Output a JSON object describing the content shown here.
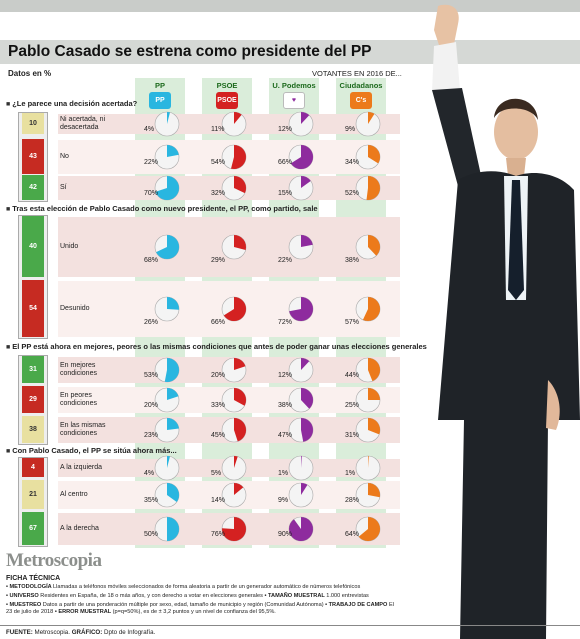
{
  "header": {
    "title": "Pablo Casado se estrena como presidente del PP",
    "subtitle": "Datos en %",
    "voters_label": "VOTANTES EN 2016 DE..."
  },
  "parties": [
    {
      "name": "PP",
      "logo_text": "PP",
      "color": "#29b6e0"
    },
    {
      "name": "PSOE",
      "logo_text": "PSOE",
      "color": "#d42121"
    },
    {
      "name": "U. Podemos",
      "logo_text": "♥",
      "color": "#8e2b9e"
    },
    {
      "name": "Ciudadanos",
      "logo_text": "C's",
      "color": "#ec7a1b"
    }
  ],
  "chart_data": [
    {
      "type": "pie",
      "question": "¿Le parece una decisión acertada?",
      "rows": [
        {
          "label": "Ni acertada, ni desacertada",
          "total": 10,
          "bar_color": "#e8e0a0",
          "values": [
            4,
            11,
            12,
            9
          ]
        },
        {
          "label": "No",
          "total": 43,
          "bar_color": "#c62b22",
          "values": [
            22,
            54,
            66,
            34
          ]
        },
        {
          "label": "Sí",
          "total": 42,
          "bar_color": "#4aa94a",
          "values": [
            70,
            32,
            15,
            52
          ]
        }
      ]
    },
    {
      "type": "pie",
      "question": "Tras esta elección de Pablo Casado como nuevo presidente, el PP, como partido, sale",
      "rows": [
        {
          "label": "Unido",
          "total": 40,
          "bar_color": "#4aa94a",
          "values": [
            68,
            29,
            22,
            38
          ]
        },
        {
          "label": "Desunido",
          "total": 54,
          "bar_color": "#c62b22",
          "values": [
            26,
            66,
            72,
            57
          ]
        }
      ]
    },
    {
      "type": "pie",
      "question": "El PP está ahora en mejores, peores o las mismas condiciones que antes de poder ganar unas elecciones generales",
      "rows": [
        {
          "label": "En mejores condiciones",
          "total": 31,
          "bar_color": "#4aa94a",
          "values": [
            53,
            20,
            12,
            44
          ]
        },
        {
          "label": "En peores condiciones",
          "total": 29,
          "bar_color": "#c62b22",
          "values": [
            20,
            33,
            38,
            25
          ]
        },
        {
          "label": "En las mismas condiciones",
          "total": 38,
          "bar_color": "#e8e0a0",
          "values": [
            23,
            45,
            47,
            31
          ]
        }
      ]
    },
    {
      "type": "pie",
      "question": "Con Pablo Casado, el PP se sitúa ahora más...",
      "rows": [
        {
          "label": "A la izquierda",
          "total": 4,
          "bar_color": "#c62b22",
          "values": [
            4,
            5,
            1,
            1
          ]
        },
        {
          "label": "Al centro",
          "total": 21,
          "bar_color": "#e8e0a0",
          "values": [
            35,
            14,
            9,
            28
          ]
        },
        {
          "label": "A la derecha",
          "total": 67,
          "bar_color": "#4aa94a",
          "values": [
            50,
            76,
            90,
            64
          ]
        }
      ]
    }
  ],
  "brand": "Metroscopia",
  "ficha": {
    "title": "FICHA TÉCNICA",
    "lines": [
      {
        "k": "METODOLOGÍA",
        "v": "Llamadas a teléfonos móviles seleccionados de forma aleatoria a partir de un generador automático de números telefónicos"
      },
      {
        "k": "UNIVERSO",
        "v": "Residentes en España, de 18 o más años, y con derecho a votar en elecciones generales"
      },
      {
        "k": "TAMAÑO MUESTRAL",
        "v": "1.000 entrevistas"
      },
      {
        "k": "MUESTREO",
        "v": "Datos a partir de una ponderación múltiple por sexo, edad, tamaño de municipio y región (Comunidad Autónoma)"
      },
      {
        "k": "TRABAJO DE CAMPO",
        "v": "El 23 de julio de 2018"
      },
      {
        "k": "ERROR MUESTRAL",
        "v": "(p=q=50%), es de ± 3,2 puntos y un nivel de confianza del 95,5%."
      }
    ]
  },
  "footer": {
    "fuente_k": "FUENTE:",
    "fuente_v": "Metroscopia.",
    "grafico_k": "GRÁFICO:",
    "grafico_v": "Dpto de Infografía."
  }
}
